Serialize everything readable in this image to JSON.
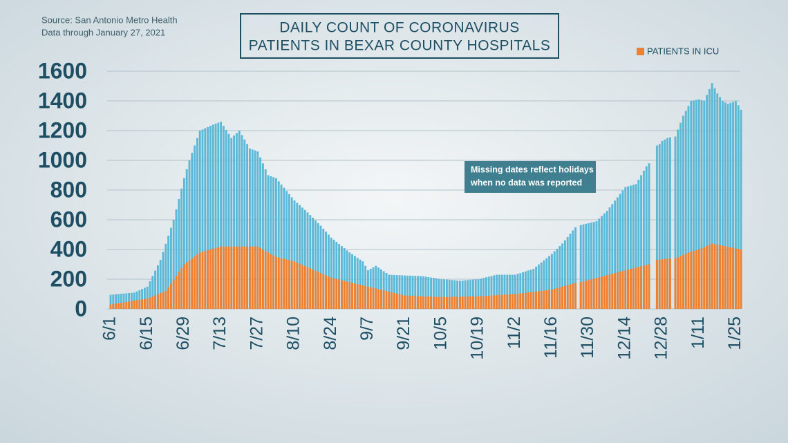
{
  "chart_data": {
    "type": "bar",
    "title": [
      "DAILY COUNT OF CORONAVIRUS",
      "PATIENTS IN BEXAR COUNTY HOSPITALS"
    ],
    "source": [
      "Source: San Antonio Metro Health",
      "Data through January 27, 2021"
    ],
    "annotation": [
      "Missing dates reflect holidays",
      "when no data was reported"
    ],
    "categories": [
      "6/1",
      null,
      null,
      null,
      null,
      null,
      null,
      null,
      null,
      null,
      null,
      null,
      null,
      null,
      "6/15",
      null,
      null,
      null,
      null,
      null,
      null,
      null,
      null,
      null,
      null,
      null,
      null,
      null,
      "6/29",
      null,
      null,
      null,
      null,
      null,
      null,
      null,
      null,
      null,
      null,
      null,
      null,
      null,
      "7/13",
      null,
      null,
      null,
      null,
      null,
      null,
      null,
      null,
      null,
      null,
      null,
      null,
      null,
      "7/27",
      null,
      null,
      null,
      null,
      null,
      null,
      null,
      null,
      null,
      null,
      null,
      null,
      null,
      "8/10",
      null,
      null,
      null,
      null,
      null,
      null,
      null,
      null,
      null,
      null,
      null,
      null,
      null,
      "8/24",
      null,
      null,
      null,
      null,
      null,
      null,
      null,
      null,
      null,
      null,
      null,
      null,
      null,
      "9/7",
      null,
      null,
      null,
      null,
      null,
      null,
      null,
      null,
      null,
      null,
      null,
      null,
      null,
      "9/21",
      null,
      null,
      null,
      null,
      null,
      null,
      null,
      null,
      null,
      null,
      null,
      null,
      null,
      "10/5",
      null,
      null,
      null,
      null,
      null,
      null,
      null,
      null,
      null,
      null,
      null,
      null,
      null,
      "10/19",
      null,
      null,
      null,
      null,
      null,
      null,
      null,
      null,
      null,
      null,
      null,
      null,
      null,
      "11/2",
      null,
      null,
      null,
      null,
      null,
      null,
      null,
      null,
      null,
      null,
      null,
      null,
      null,
      "11/16",
      null,
      null,
      null,
      null,
      null,
      null,
      null,
      null,
      null,
      null,
      null,
      null,
      null,
      "11/30",
      null,
      null,
      null,
      null,
      null,
      null,
      null,
      null,
      null,
      null,
      null,
      null,
      null,
      "12/14",
      null,
      null,
      null,
      null,
      null,
      null,
      null,
      null,
      null,
      null,
      null,
      null,
      null,
      "12/28",
      null,
      null,
      null,
      null,
      null,
      null,
      null,
      null,
      null,
      null,
      null,
      null,
      null,
      "1/11",
      null,
      null,
      null,
      null,
      null,
      null,
      null,
      null,
      null,
      null,
      null,
      null,
      null,
      "1/25",
      null,
      null
    ],
    "series": [
      {
        "color": "#5bb8d6",
        "values": [
          95,
          97,
          98,
          100,
          102,
          103,
          105,
          107,
          108,
          110,
          118,
          126,
          134,
          142,
          150,
          186,
          222,
          258,
          294,
          330,
          384,
          438,
          492,
          546,
          600,
          670,
          740,
          810,
          880,
          940,
          1000,
          1050,
          1100,
          1150,
          1200,
          1208,
          1216,
          1224,
          1232,
          1240,
          1247,
          1253,
          1260,
          1232,
          1205,
          1178,
          1150,
          1167,
          1183,
          1200,
          1170,
          1140,
          1110,
          1080,
          1073,
          1067,
          1060,
          1020,
          980,
          940,
          900,
          893,
          887,
          880,
          859,
          837,
          816,
          794,
          773,
          751,
          730,
          714,
          698,
          682,
          666,
          650,
          632,
          614,
          596,
          578,
          560,
          540,
          520,
          500,
          480,
          466,
          451,
          437,
          423,
          409,
          394,
          380,
          368,
          356,
          344,
          332,
          320,
          290,
          260,
          270,
          280,
          290,
          278,
          266,
          254,
          242,
          230,
          229,
          228,
          227,
          227,
          226,
          225,
          224,
          224,
          223,
          222,
          222,
          221,
          220,
          217,
          214,
          211,
          209,
          206,
          203,
          200,
          199,
          197,
          196,
          194,
          193,
          191,
          190,
          191,
          193,
          194,
          196,
          197,
          199,
          200,
          204,
          209,
          213,
          217,
          221,
          226,
          230,
          230,
          230,
          230,
          230,
          230,
          230,
          230,
          236,
          241,
          247,
          253,
          259,
          264,
          270,
          284,
          299,
          313,
          327,
          341,
          356,
          370,
          388,
          405,
          423,
          440,
          462,
          484,
          506,
          528,
          550,
          null,
          564,
          569,
          573,
          577,
          581,
          586,
          590,
          608,
          625,
          643,
          660,
          683,
          706,
          729,
          751,
          774,
          797,
          820,
          825,
          830,
          835,
          840,
          870,
          900,
          930,
          960,
          980,
          null,
          null,
          1100,
          1110,
          1130,
          1140,
          1150,
          1155,
          null,
          1160,
          1207,
          1253,
          1300,
          1333,
          1367,
          1400,
          1403,
          1407,
          1410,
          1405,
          1400,
          1440,
          1480,
          1520,
          1485,
          1450,
          1425,
          1400,
          1390,
          1380,
          1387,
          1393,
          1400,
          1370,
          1340
        ]
      },
      {
        "name": "PATIENTS IN ICU",
        "color": "#f07f2e",
        "values": [
          30,
          33,
          36,
          39,
          41,
          44,
          47,
          50,
          53,
          56,
          59,
          61,
          64,
          67,
          70,
          77,
          84,
          91,
          99,
          106,
          113,
          120,
          146,
          171,
          197,
          223,
          249,
          274,
          300,
          313,
          327,
          340,
          353,
          367,
          380,
          385,
          390,
          395,
          400,
          405,
          410,
          415,
          420,
          420,
          420,
          420,
          420,
          420,
          420,
          420,
          420,
          420,
          420,
          420,
          420,
          420,
          420,
          410,
          400,
          390,
          380,
          370,
          360,
          350,
          346,
          341,
          337,
          333,
          329,
          324,
          320,
          312,
          304,
          296,
          289,
          281,
          273,
          265,
          257,
          249,
          241,
          234,
          226,
          218,
          210,
          206,
          201,
          197,
          193,
          189,
          184,
          180,
          176,
          171,
          167,
          163,
          159,
          154,
          150,
          146,
          141,
          137,
          133,
          129,
          124,
          120,
          116,
          111,
          107,
          103,
          99,
          94,
          90,
          89,
          89,
          88,
          87,
          86,
          86,
          85,
          84,
          84,
          83,
          82,
          81,
          81,
          80,
          80,
          81,
          81,
          81,
          82,
          82,
          83,
          83,
          83,
          84,
          84,
          84,
          85,
          85,
          86,
          87,
          88,
          89,
          90,
          91,
          92,
          94,
          95,
          96,
          97,
          98,
          99,
          100,
          102,
          104,
          106,
          109,
          111,
          113,
          115,
          117,
          119,
          121,
          124,
          126,
          128,
          130,
          135,
          140,
          145,
          150,
          155,
          160,
          165,
          170,
          175,
          null,
          180,
          185,
          189,
          194,
          199,
          204,
          208,
          213,
          218,
          222,
          227,
          232,
          236,
          241,
          246,
          251,
          255,
          260,
          264,
          269,
          273,
          278,
          282,
          287,
          291,
          296,
          300,
          null,
          null,
          330,
          332,
          334,
          336,
          338,
          339,
          null,
          340,
          348,
          356,
          364,
          372,
          380,
          385,
          390,
          395,
          400,
          408,
          416,
          424,
          432,
          440,
          436,
          433,
          429,
          425,
          422,
          418,
          415,
          411,
          407,
          404,
          400
        ]
      }
    ],
    "ylim": [
      0,
      1600
    ],
    "yticks": [
      0,
      200,
      400,
      600,
      800,
      1000,
      1200,
      1400,
      1600
    ],
    "grid": true,
    "legend": "top-right"
  }
}
